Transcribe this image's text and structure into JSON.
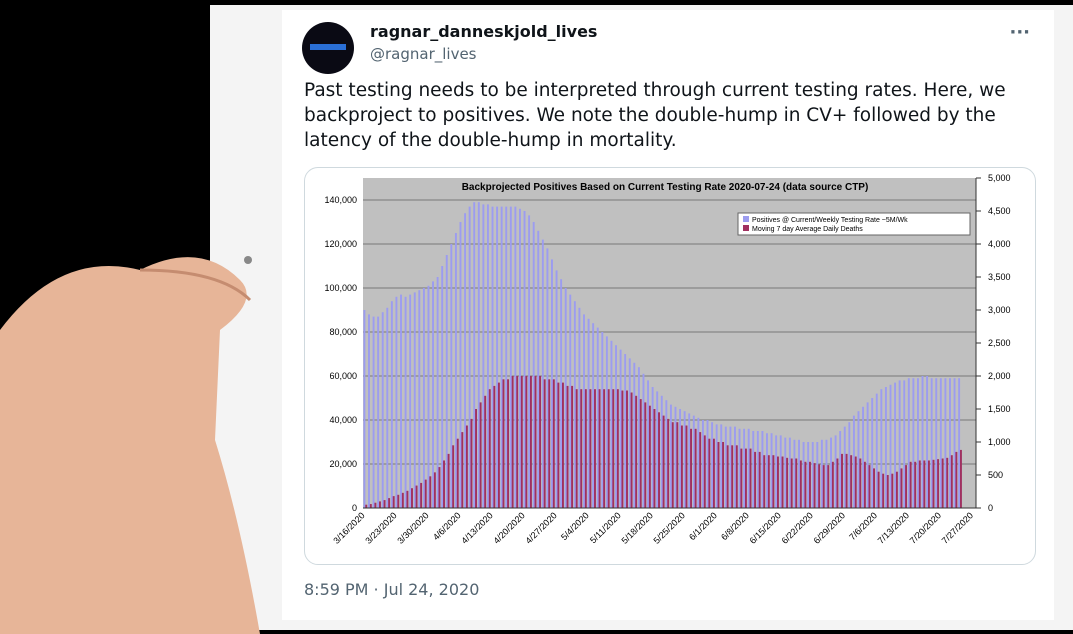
{
  "tweet": {
    "display_name": "ragnar_danneskjold_lives",
    "handle": "@ragnar_lives",
    "menu": "···",
    "text": "Past testing needs to be interpreted through current testing rates. Here, we backproject to positives. We note the double-hump in CV+ followed by the latency of the double-hump in mortality.",
    "timestamp": "8:59 PM · Jul 24, 2020"
  },
  "chart_data": {
    "type": "bar",
    "title": "Backprojected Positives Based on Current Testing Rate 2020-07-24 (data source CTP)",
    "categories": [
      "3/16/2020",
      null,
      null,
      null,
      null,
      null,
      null,
      "3/23/2020",
      null,
      null,
      null,
      null,
      null,
      null,
      "3/30/2020",
      null,
      null,
      null,
      null,
      null,
      null,
      "4/6/2020",
      null,
      null,
      null,
      null,
      null,
      null,
      "4/13/2020",
      null,
      null,
      null,
      null,
      null,
      null,
      "4/20/2020",
      null,
      null,
      null,
      null,
      null,
      null,
      "4/27/2020",
      null,
      null,
      null,
      null,
      null,
      null,
      "5/4/2020",
      null,
      null,
      null,
      null,
      null,
      null,
      "5/11/2020",
      null,
      null,
      null,
      null,
      null,
      null,
      "5/18/2020",
      null,
      null,
      null,
      null,
      null,
      null,
      "5/25/2020",
      null,
      null,
      null,
      null,
      null,
      null,
      "6/1/2020",
      null,
      null,
      null,
      null,
      null,
      null,
      "6/8/2020",
      null,
      null,
      null,
      null,
      null,
      null,
      "6/15/2020",
      null,
      null,
      null,
      null,
      null,
      null,
      "6/22/2020",
      null,
      null,
      null,
      null,
      null,
      null,
      "6/29/2020",
      null,
      null,
      null,
      null,
      null,
      null,
      "7/6/2020",
      null,
      null,
      null,
      null,
      null,
      null,
      "7/13/2020",
      null,
      null,
      null,
      null,
      null,
      null,
      "7/20/2020",
      null,
      null,
      null,
      null,
      null,
      null,
      "7/27/2020"
    ],
    "series": [
      {
        "name": "Positives @ Current/Weekly Testing Rate ~5M/Wk",
        "color": "#9c9cf0",
        "values": [
          90000,
          88000,
          87000,
          87000,
          89000,
          91000,
          94000,
          96000,
          97000,
          96000,
          97000,
          98000,
          99000,
          100000,
          101000,
          103000,
          105000,
          110000,
          115000,
          120000,
          125000,
          130000,
          134000,
          137000,
          139000,
          139000,
          138000,
          138000,
          137000,
          137000,
          137000,
          137000,
          137000,
          137000,
          136000,
          135000,
          133000,
          130000,
          126000,
          122000,
          118000,
          113000,
          108000,
          104000,
          100000,
          97000,
          94000,
          91000,
          88000,
          86000,
          84000,
          82000,
          80000,
          78000,
          76000,
          74000,
          72000,
          70000,
          68000,
          66000,
          64000,
          61000,
          58000,
          55000,
          53000,
          51000,
          49000,
          47000,
          46000,
          45000,
          44000,
          43000,
          42000,
          41000,
          40000,
          40000,
          39000,
          38000,
          38000,
          37000,
          37000,
          37000,
          36000,
          36000,
          36000,
          35000,
          35000,
          35000,
          34000,
          34000,
          33000,
          33000,
          32000,
          32000,
          31000,
          31000,
          30000,
          30000,
          30000,
          30000,
          31000,
          31000,
          32000,
          33000,
          35000,
          37000,
          39000,
          42000,
          44000,
          46000,
          48000,
          50000,
          52000,
          54000,
          55000,
          56000,
          57000,
          58000,
          58000,
          59000,
          59000,
          59000,
          60000,
          60000,
          59000,
          59000,
          59000,
          59000,
          59000,
          59000,
          59000,
          null,
          null,
          null
        ]
      },
      {
        "name": "Moving 7 day Average Daily Deaths",
        "color": "#a03060",
        "axis": "y2",
        "values": [
          50,
          60,
          80,
          100,
          120,
          150,
          180,
          200,
          230,
          260,
          300,
          340,
          380,
          430,
          480,
          540,
          620,
          720,
          820,
          950,
          1050,
          1150,
          1250,
          1350,
          1500,
          1600,
          1700,
          1800,
          1850,
          1900,
          1950,
          1950,
          2000,
          2000,
          2000,
          2000,
          2000,
          2000,
          2000,
          1950,
          1950,
          1950,
          1900,
          1900,
          1850,
          1850,
          1800,
          1800,
          1800,
          1800,
          1800,
          1800,
          1800,
          1800,
          1800,
          1800,
          1780,
          1780,
          1750,
          1700,
          1650,
          1600,
          1550,
          1500,
          1450,
          1400,
          1350,
          1300,
          1300,
          1250,
          1250,
          1200,
          1200,
          1150,
          1100,
          1050,
          1050,
          1000,
          1000,
          950,
          950,
          950,
          900,
          900,
          900,
          850,
          850,
          800,
          800,
          800,
          780,
          780,
          760,
          750,
          750,
          720,
          700,
          700,
          680,
          660,
          650,
          650,
          700,
          750,
          820,
          820,
          800,
          780,
          750,
          700,
          650,
          600,
          550,
          520,
          500,
          520,
          550,
          600,
          650,
          700,
          700,
          720,
          720,
          720,
          730,
          740,
          750,
          760,
          800,
          850,
          880,
          null,
          null,
          null
        ]
      }
    ],
    "ylim": [
      0,
      150000
    ],
    "yticks": [
      0,
      {
        "value": 20000,
        "label": "20,000"
      },
      {
        "value": 40000,
        "label": "40,000"
      },
      {
        "value": 60000,
        "label": "60,000"
      },
      {
        "value": 80000,
        "label": "80,000"
      },
      {
        "value": 100000,
        "label": "100,000"
      },
      {
        "value": 120000,
        "label": "120,000"
      },
      {
        "value": 140000,
        "label": "140,000"
      }
    ],
    "y2lim": [
      0,
      5000
    ],
    "y2ticks": [
      0,
      500,
      {
        "value": 1000,
        "label": "1,000"
      },
      {
        "value": 1500,
        "label": "1,500"
      },
      {
        "value": 2000,
        "label": "2,000"
      },
      {
        "value": 2500,
        "label": "2,500"
      },
      {
        "value": 3000,
        "label": "3,000"
      },
      {
        "value": 3500,
        "label": "3,500"
      },
      {
        "value": 4000,
        "label": "4,000"
      },
      {
        "value": 4500,
        "label": "4,500"
      },
      {
        "value": 5000,
        "label": "5,000"
      }
    ],
    "grid": true,
    "legend": "top-right"
  }
}
